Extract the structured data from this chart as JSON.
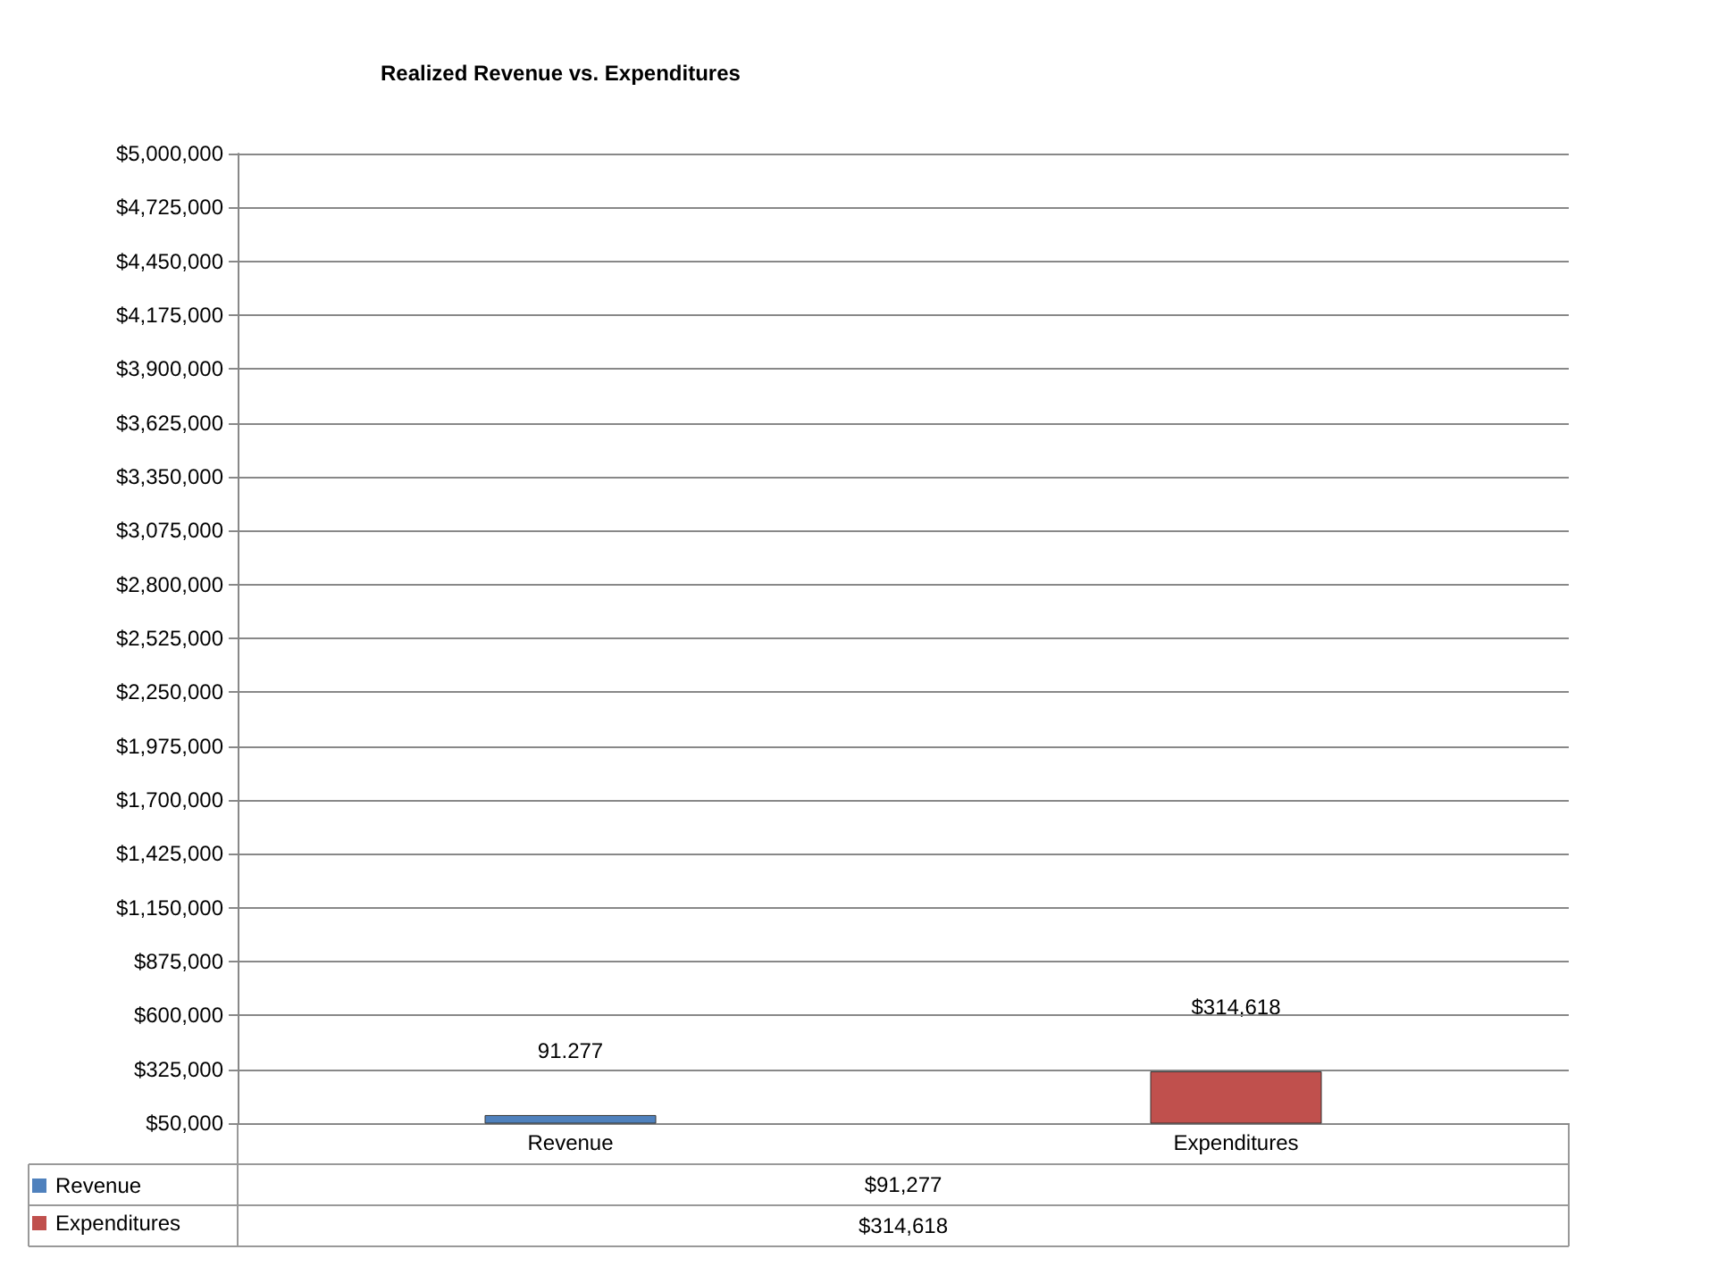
{
  "chart_data": {
    "type": "bar",
    "title": "Realized Revenue vs. Expenditures",
    "categories": [
      "Revenue",
      "Expenditures"
    ],
    "stacked": true,
    "series": [
      {
        "name": "Revenue",
        "color": "#4f81bd",
        "values": [
          91277,
          null
        ]
      },
      {
        "name": "Expenditures",
        "color": "#c0504d",
        "values": [
          null,
          314618
        ]
      }
    ],
    "ylim": [
      50000,
      5000000
    ],
    "yticks": [
      {
        "value": 50000,
        "label": "$50,000"
      },
      {
        "value": 325000,
        "label": "$325,000"
      },
      {
        "value": 600000,
        "label": "$600,000"
      },
      {
        "value": 875000,
        "label": "$875,000"
      },
      {
        "value": 1150000,
        "label": "$1,150,000"
      },
      {
        "value": 1425000,
        "label": "$1,425,000"
      },
      {
        "value": 1700000,
        "label": "$1,700,000"
      },
      {
        "value": 1975000,
        "label": "$1,975,000"
      },
      {
        "value": 2250000,
        "label": "$2,250,000"
      },
      {
        "value": 2525000,
        "label": "$2,525,000"
      },
      {
        "value": 2800000,
        "label": "$2,800,000"
      },
      {
        "value": 3075000,
        "label": "$3,075,000"
      },
      {
        "value": 3350000,
        "label": "$3,350,000"
      },
      {
        "value": 3625000,
        "label": "$3,625,000"
      },
      {
        "value": 3900000,
        "label": "$3,900,000"
      },
      {
        "value": 4175000,
        "label": "$4,175,000"
      },
      {
        "value": 4450000,
        "label": "$4,450,000"
      },
      {
        "value": 4725000,
        "label": "$4,725,000"
      },
      {
        "value": 5000000,
        "label": "$5,000,000"
      }
    ],
    "grid": "y",
    "legend": "bottom",
    "annotations": [
      {
        "text": "91.277",
        "x": "Revenue",
        "y": 91277
      },
      {
        "text": "$314,618",
        "x": "Expenditures",
        "y": 314618
      },
      "$91,277",
      "$314,618"
    ]
  }
}
